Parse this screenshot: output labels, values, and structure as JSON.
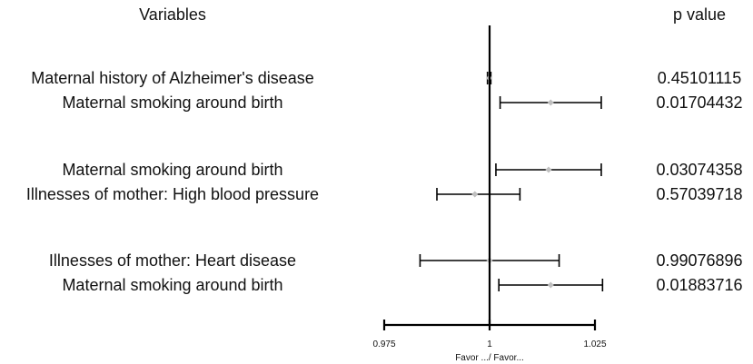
{
  "chart_data": {
    "type": "forest",
    "headers": {
      "variables": "Variables",
      "pvalue": "p value"
    },
    "rows": [
      {
        "label": "Maternal history of Alzheimer's disease",
        "estimate": 0.9999,
        "ci": [
          0.9995,
          1.0003
        ],
        "p_value": "0.45101115"
      },
      {
        "label": "Maternal smoking around birth",
        "estimate": 1.0145,
        "ci": [
          1.0025,
          1.0265
        ],
        "p_value": "0.01704432"
      },
      {
        "label": "Maternal smoking around birth",
        "estimate": 1.014,
        "ci": [
          1.0015,
          1.0265
        ],
        "p_value": "0.03074358"
      },
      {
        "label": "Illnesses of mother: High blood pressure",
        "estimate": 0.9965,
        "ci": [
          0.9875,
          1.0072
        ],
        "p_value": "0.57039718"
      },
      {
        "label": "Illnesses of mother: Heart disease",
        "estimate": 1.0,
        "ci": [
          0.9835,
          1.0165
        ],
        "p_value": "0.99076896"
      },
      {
        "label": "Maternal smoking around birth",
        "estimate": 1.0145,
        "ci": [
          1.0022,
          1.0268
        ],
        "p_value": "0.01883716"
      }
    ],
    "xlim": [
      0.975,
      1.025
    ],
    "xticks": [
      0.975,
      1,
      1.025
    ],
    "xtick_labels": [
      "0.975",
      "1",
      "1.025"
    ],
    "reference_line": 1,
    "xlabel": "Favor .../ Favor...",
    "colors": {
      "point": "#bfbfbf",
      "line": "#000000"
    }
  }
}
